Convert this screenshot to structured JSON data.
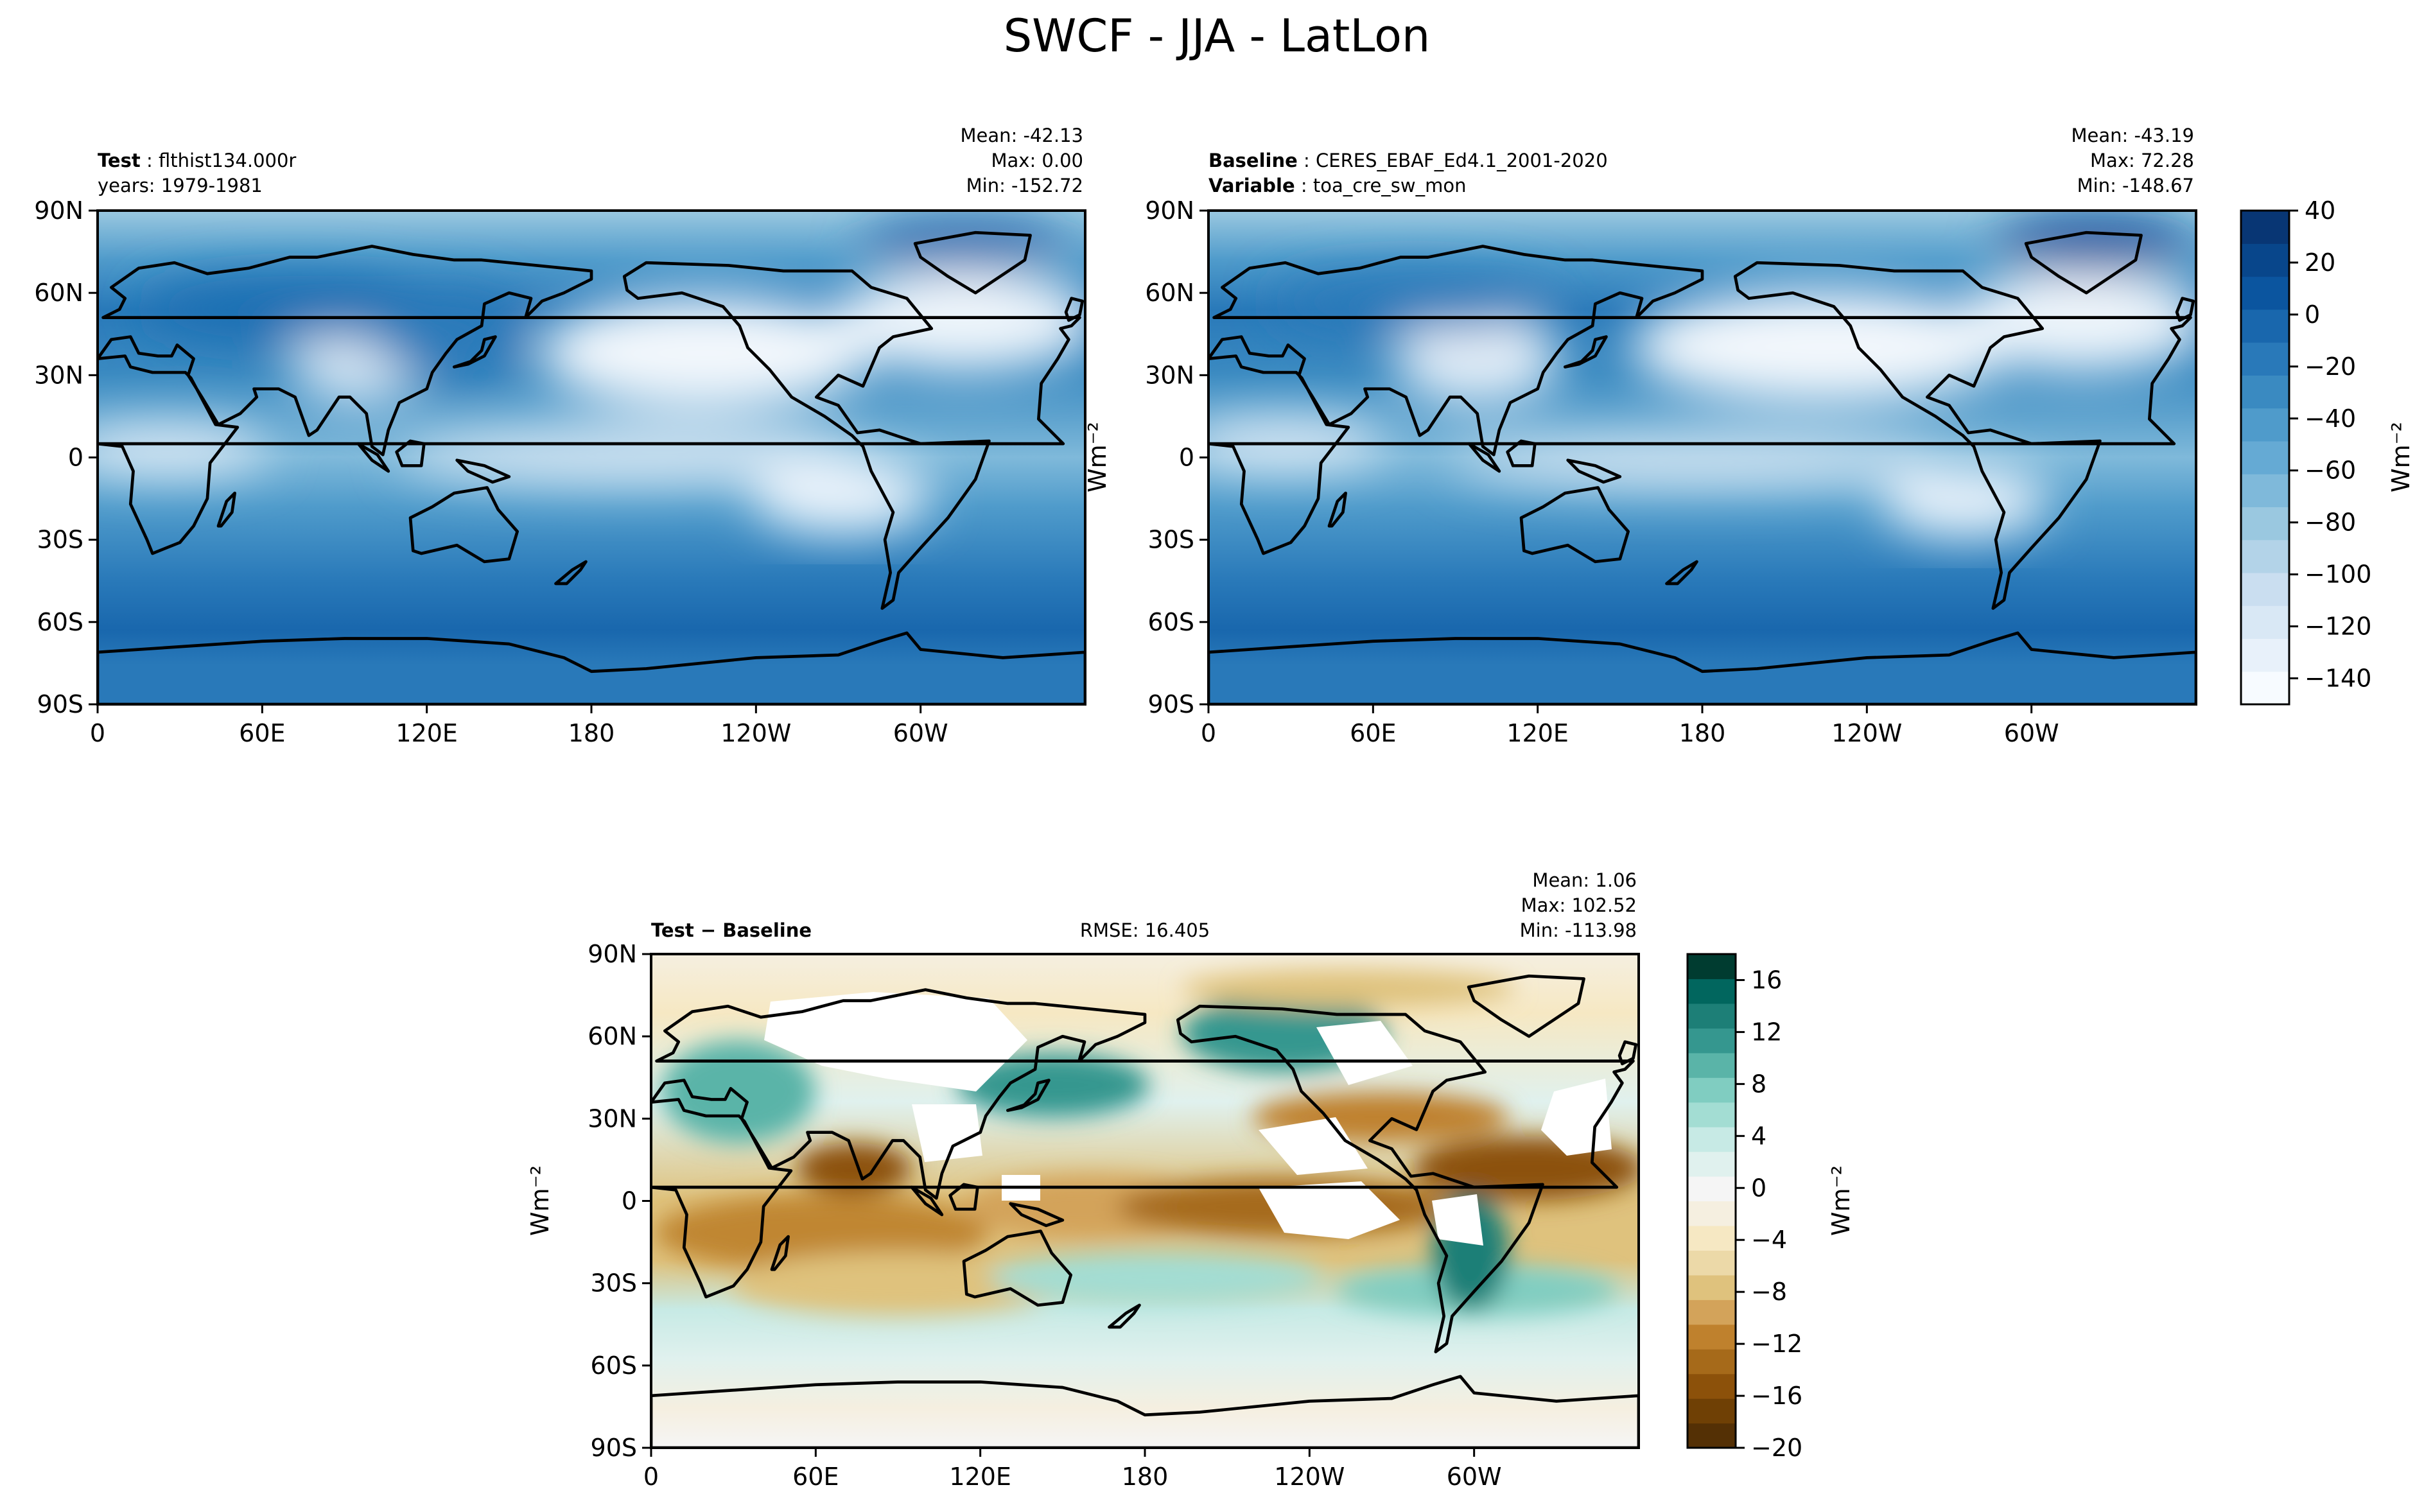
{
  "figure_title": "SWCF - JJA - LatLon",
  "chart_data": [
    {
      "type": "heatmap",
      "id": "test",
      "header": {
        "left_bold": "Test",
        "left_text": "flthist134.000r",
        "left_line2": "years: 1979-1981",
        "stats": [
          "Mean: -42.13",
          "Max:  0.00",
          "Min: -152.72"
        ]
      },
      "x_ticks": [
        "0",
        "60E",
        "120E",
        "180",
        "120W",
        "60W"
      ],
      "y_ticks": [
        "90N",
        "60N",
        "30N",
        "0",
        "30S",
        "60S",
        "90S"
      ],
      "xlim": [
        0,
        360
      ],
      "ylim": [
        -90,
        90
      ],
      "field": "SWCF",
      "units": "Wm⁻²",
      "mean": -42.13,
      "max": 0.0,
      "min": -152.72
    },
    {
      "type": "heatmap",
      "id": "baseline",
      "header": {
        "left_bold": "Baseline",
        "left_text": "CERES_EBAF_Ed4.1_2001-2020",
        "left_bold2": "Variable",
        "left_text2": "toa_cre_sw_mon",
        "stats": [
          "Mean: -43.19",
          "Max: 72.28",
          "Min: -148.67"
        ]
      },
      "x_ticks": [
        "0",
        "60E",
        "120E",
        "180",
        "120W",
        "60W"
      ],
      "y_ticks": [
        "90N",
        "60N",
        "30N",
        "0",
        "30S",
        "60S",
        "90S"
      ],
      "xlim": [
        0,
        360
      ],
      "ylim": [
        -90,
        90
      ],
      "ylabel": "Wm⁻²",
      "mean": -43.19,
      "max": 72.28,
      "min": -148.67
    },
    {
      "type": "heatmap",
      "id": "difference",
      "header": {
        "left_bold": "Test − Baseline",
        "center_text": "RMSE: 16.405",
        "stats": [
          "Mean:  1.06",
          "Max: 102.52",
          "Min: -113.98"
        ]
      },
      "x_ticks": [
        "0",
        "60E",
        "120E",
        "180",
        "120W",
        "60W"
      ],
      "y_ticks": [
        "90N",
        "60N",
        "30N",
        "0",
        "30S",
        "60S",
        "90S"
      ],
      "xlim": [
        0,
        360
      ],
      "ylim": [
        -90,
        90
      ],
      "ylabel": "Wm⁻²",
      "rmse": 16.405,
      "mean": 1.06,
      "max": 102.52,
      "min": -113.98
    }
  ],
  "colorbars": [
    {
      "id": "main",
      "label": "Wm⁻²",
      "range": [
        -150,
        40
      ],
      "tick_values": [
        40,
        20,
        0,
        -20,
        -40,
        -60,
        -80,
        -100,
        -120,
        -140
      ],
      "tick_labels": [
        "40",
        "20",
        "0",
        "−20",
        "−40",
        "−60",
        "−80",
        "−100",
        "−120",
        "−140"
      ],
      "colors": [
        "#f7fbff",
        "#e8f1fa",
        "#d9e8f5",
        "#cadef0",
        "#b3d3e8",
        "#9ac8e0",
        "#7fb9da",
        "#65aad4",
        "#4f9bcb",
        "#3a8ac1",
        "#2979b9",
        "#1967ad",
        "#0b559f",
        "#08468b",
        "#083674"
      ]
    },
    {
      "id": "diff",
      "label": "Wm⁻²",
      "range": [
        -20,
        18
      ],
      "tick_values": [
        16,
        12,
        8,
        4,
        0,
        -4,
        -8,
        -12,
        -16,
        -20
      ],
      "tick_labels": [
        "16",
        "12",
        "8",
        "4",
        "0",
        "−4",
        "−8",
        "−12",
        "−16",
        "−20"
      ],
      "colors": [
        "#543005",
        "#6f4005",
        "#8c510a",
        "#a66a1a",
        "#bf812d",
        "#d3a35a",
        "#dfc27d",
        "#ecd9a8",
        "#f6e8c3",
        "#f5efe0",
        "#f5f5f5",
        "#e0f1ee",
        "#c7eae5",
        "#a3ddd3",
        "#80cdc1",
        "#5ab4a8",
        "#35978f",
        "#1d7f77",
        "#01665e",
        "#003c30"
      ]
    }
  ]
}
